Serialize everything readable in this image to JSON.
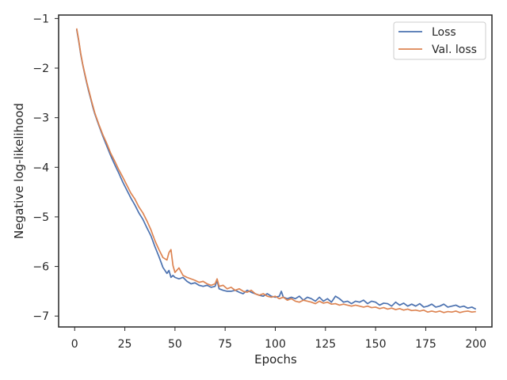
{
  "chart_data": {
    "type": "line",
    "xlabel": "Epochs",
    "ylabel": "Negative log-likelihood",
    "xlim": [
      -8,
      208
    ],
    "ylim": [
      -7.22,
      -0.93
    ],
    "xticks": [
      0,
      25,
      50,
      75,
      100,
      125,
      150,
      175,
      200
    ],
    "yticks": [
      -1,
      -2,
      -3,
      -4,
      -5,
      -6,
      -7
    ],
    "xtick_labels": [
      "0",
      "25",
      "50",
      "75",
      "100",
      "125",
      "150",
      "175",
      "200"
    ],
    "ytick_labels": [
      "−1",
      "−2",
      "−3",
      "−4",
      "−5",
      "−6",
      "−7"
    ],
    "grid": false,
    "legend_position": "top-right",
    "series": [
      {
        "name": "Loss",
        "color": "#4c72b0",
        "x": [
          1,
          2,
          3,
          4,
          5,
          6,
          7,
          8,
          9,
          10,
          12,
          14,
          16,
          18,
          20,
          22,
          24,
          26,
          28,
          30,
          32,
          34,
          36,
          38,
          40,
          42,
          44,
          46,
          47,
          48,
          49,
          50,
          52,
          54,
          56,
          58,
          60,
          62,
          64,
          66,
          68,
          70,
          71,
          72,
          74,
          76,
          78,
          80,
          82,
          84,
          86,
          88,
          90,
          92,
          94,
          96,
          98,
          100,
          102,
          103,
          104,
          106,
          108,
          110,
          112,
          114,
          116,
          118,
          120,
          122,
          124,
          126,
          128,
          130,
          132,
          134,
          136,
          138,
          140,
          142,
          144,
          146,
          148,
          150,
          152,
          154,
          156,
          158,
          160,
          162,
          164,
          166,
          168,
          170,
          172,
          174,
          176,
          178,
          180,
          182,
          184,
          186,
          188,
          190,
          192,
          194,
          196,
          198,
          200
        ],
        "y": [
          -1.22,
          -1.45,
          -1.72,
          -1.93,
          -2.12,
          -2.3,
          -2.47,
          -2.62,
          -2.78,
          -2.92,
          -3.15,
          -3.37,
          -3.57,
          -3.77,
          -3.95,
          -4.12,
          -4.3,
          -4.46,
          -4.62,
          -4.76,
          -4.92,
          -5.05,
          -5.22,
          -5.38,
          -5.6,
          -5.8,
          -6.02,
          -6.14,
          -6.08,
          -6.22,
          -6.18,
          -6.22,
          -6.25,
          -6.22,
          -6.3,
          -6.35,
          -6.33,
          -6.38,
          -6.4,
          -6.38,
          -6.42,
          -6.4,
          -6.28,
          -6.45,
          -6.48,
          -6.5,
          -6.5,
          -6.48,
          -6.52,
          -6.55,
          -6.48,
          -6.52,
          -6.55,
          -6.58,
          -6.6,
          -6.55,
          -6.6,
          -6.62,
          -6.6,
          -6.5,
          -6.62,
          -6.65,
          -6.62,
          -6.65,
          -6.6,
          -6.68,
          -6.62,
          -6.65,
          -6.7,
          -6.62,
          -6.7,
          -6.65,
          -6.72,
          -6.6,
          -6.65,
          -6.72,
          -6.7,
          -6.75,
          -6.7,
          -6.72,
          -6.68,
          -6.75,
          -6.7,
          -6.72,
          -6.78,
          -6.74,
          -6.75,
          -6.8,
          -6.72,
          -6.78,
          -6.74,
          -6.8,
          -6.76,
          -6.8,
          -6.75,
          -6.82,
          -6.8,
          -6.76,
          -6.82,
          -6.8,
          -6.76,
          -6.82,
          -6.8,
          -6.78,
          -6.82,
          -6.8,
          -6.84,
          -6.82,
          -6.86
        ]
      },
      {
        "name": "Val. loss",
        "color": "#dd8452",
        "x": [
          1,
          2,
          3,
          4,
          5,
          6,
          7,
          8,
          9,
          10,
          12,
          14,
          16,
          18,
          20,
          22,
          24,
          26,
          28,
          30,
          32,
          34,
          36,
          38,
          40,
          42,
          44,
          46,
          47,
          48,
          49,
          50,
          52,
          54,
          56,
          58,
          60,
          62,
          64,
          66,
          68,
          70,
          71,
          72,
          74,
          76,
          78,
          80,
          82,
          84,
          86,
          88,
          90,
          92,
          94,
          96,
          98,
          100,
          102,
          104,
          106,
          108,
          110,
          112,
          114,
          116,
          118,
          120,
          122,
          124,
          126,
          128,
          130,
          132,
          134,
          136,
          138,
          140,
          142,
          144,
          146,
          148,
          150,
          152,
          154,
          156,
          158,
          160,
          162,
          164,
          166,
          168,
          170,
          172,
          174,
          176,
          178,
          180,
          182,
          184,
          186,
          188,
          190,
          192,
          194,
          196,
          198,
          200
        ],
        "y": [
          -1.2,
          -1.43,
          -1.7,
          -1.92,
          -2.1,
          -2.28,
          -2.44,
          -2.6,
          -2.75,
          -2.9,
          -3.13,
          -3.34,
          -3.52,
          -3.72,
          -3.88,
          -4.05,
          -4.2,
          -4.36,
          -4.52,
          -4.64,
          -4.8,
          -4.92,
          -5.08,
          -5.26,
          -5.48,
          -5.66,
          -5.82,
          -5.87,
          -5.72,
          -5.66,
          -5.98,
          -6.12,
          -6.03,
          -6.18,
          -6.22,
          -6.25,
          -6.28,
          -6.32,
          -6.3,
          -6.35,
          -6.38,
          -6.35,
          -6.25,
          -6.4,
          -6.38,
          -6.45,
          -6.42,
          -6.48,
          -6.45,
          -6.5,
          -6.52,
          -6.48,
          -6.55,
          -6.58,
          -6.55,
          -6.6,
          -6.62,
          -6.6,
          -6.65,
          -6.62,
          -6.68,
          -6.65,
          -6.7,
          -6.72,
          -6.68,
          -6.7,
          -6.72,
          -6.75,
          -6.7,
          -6.74,
          -6.72,
          -6.76,
          -6.75,
          -6.78,
          -6.76,
          -6.78,
          -6.8,
          -6.78,
          -6.8,
          -6.82,
          -6.8,
          -6.83,
          -6.82,
          -6.85,
          -6.83,
          -6.86,
          -6.84,
          -6.87,
          -6.85,
          -6.88,
          -6.86,
          -6.89,
          -6.88,
          -6.9,
          -6.88,
          -6.92,
          -6.9,
          -6.92,
          -6.9,
          -6.93,
          -6.91,
          -6.92,
          -6.9,
          -6.93,
          -6.91,
          -6.9,
          -6.92,
          -6.91
        ]
      }
    ]
  }
}
